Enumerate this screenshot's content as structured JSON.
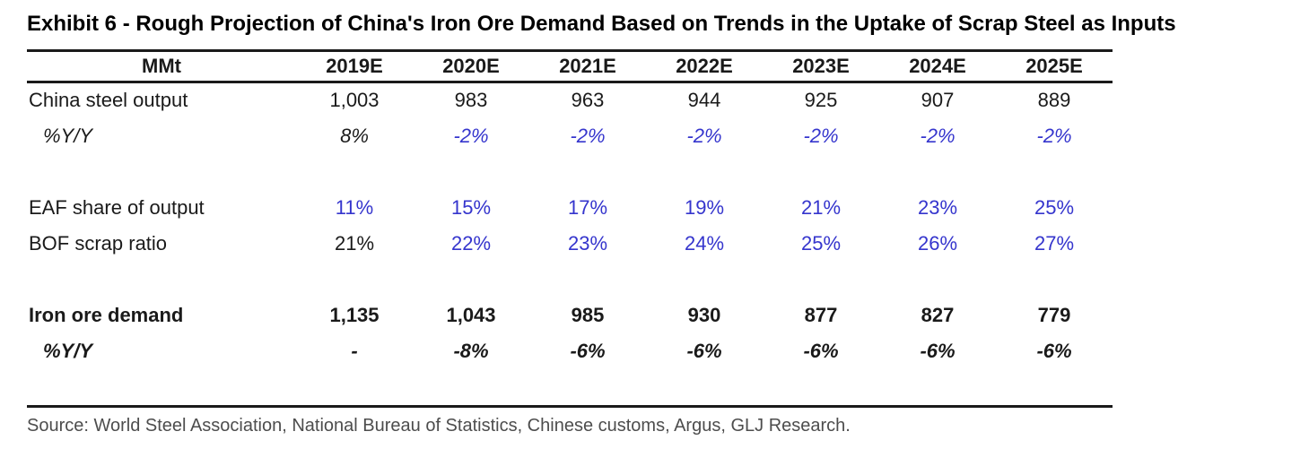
{
  "colors": {
    "accent_blue": "#3535cd",
    "text_dark": "#1a1a1a",
    "source_text": "#4d4d4d",
    "rule_color": "#1a1a1a"
  },
  "chart_data": {
    "type": "table",
    "title": "Exhibit 6 - Rough Projection of China's Iron Ore Demand Based on Trends in the Uptake of Scrap Steel as Inputs",
    "unit_header": "MMt",
    "columns": [
      "2019E",
      "2020E",
      "2021E",
      "2022E",
      "2023E",
      "2024E",
      "2025E"
    ],
    "rows": [
      {
        "label": "China steel output",
        "values": [
          "1,003",
          "983",
          "963",
          "944",
          "925",
          "907",
          "889"
        ]
      },
      {
        "label": "%Y/Y",
        "values": [
          "8%",
          "-2%",
          "-2%",
          "-2%",
          "-2%",
          "-2%",
          "-2%"
        ]
      },
      {
        "label": "EAF share of output",
        "values": [
          "11%",
          "15%",
          "17%",
          "19%",
          "21%",
          "23%",
          "25%"
        ]
      },
      {
        "label": "BOF scrap ratio",
        "values": [
          "21%",
          "22%",
          "23%",
          "24%",
          "25%",
          "26%",
          "27%"
        ]
      },
      {
        "label": "Iron ore demand",
        "values": [
          "1,135",
          "1,043",
          "985",
          "930",
          "877",
          "827",
          "779"
        ]
      },
      {
        "label": "%Y/Y",
        "values": [
          "-",
          "-8%",
          "-6%",
          "-6%",
          "-6%",
          "-6%",
          "-6%"
        ]
      }
    ],
    "source": "Source: World Steel Association, National Bureau of Statistics, Chinese customs, Argus, GLJ Research."
  }
}
